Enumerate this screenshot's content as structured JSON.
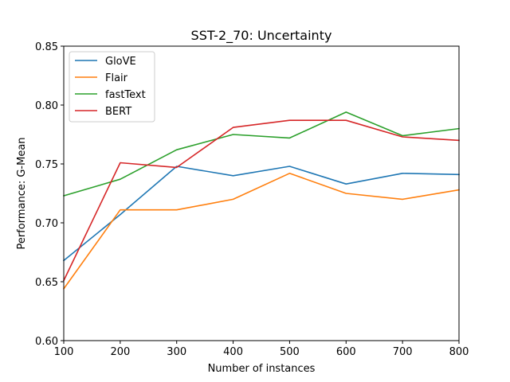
{
  "chart_data": {
    "type": "line",
    "title": "SST-2_70: Uncertainty",
    "xlabel": "Number of instances",
    "ylabel": "Performance: G-Mean",
    "x": [
      100,
      200,
      300,
      400,
      500,
      600,
      700,
      800
    ],
    "xlim": [
      100,
      800
    ],
    "ylim": [
      0.6,
      0.85
    ],
    "xticks": [
      "100",
      "200",
      "300",
      "400",
      "500",
      "600",
      "700",
      "800"
    ],
    "yticks": [
      "0.60",
      "0.65",
      "0.70",
      "0.75",
      "0.80",
      "0.85"
    ],
    "grid": false,
    "legend_position": "top-left",
    "series": [
      {
        "name": "GloVE",
        "color": "#1f77b4",
        "values": [
          0.668,
          0.707,
          0.748,
          0.74,
          0.748,
          0.733,
          0.742,
          0.741
        ]
      },
      {
        "name": "Flair",
        "color": "#ff7f0e",
        "values": [
          0.644,
          0.711,
          0.711,
          0.72,
          0.742,
          0.725,
          0.72,
          0.728
        ]
      },
      {
        "name": "fastText",
        "color": "#2ca02c",
        "values": [
          0.723,
          0.737,
          0.762,
          0.775,
          0.772,
          0.794,
          0.774,
          0.78
        ]
      },
      {
        "name": "BERT",
        "color": "#d62728",
        "values": [
          0.651,
          0.751,
          0.747,
          0.781,
          0.787,
          0.787,
          0.773,
          0.77
        ]
      }
    ]
  }
}
